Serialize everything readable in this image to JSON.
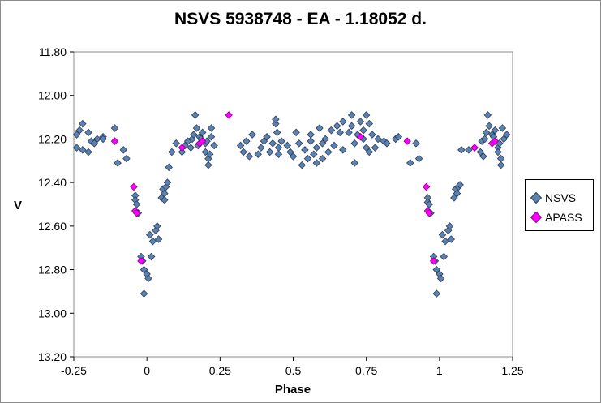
{
  "chart_data": {
    "type": "scatter",
    "title": "NSVS 5938748 - EA - 1.18052 d.",
    "xlabel": "Phase",
    "ylabel": "V",
    "xlim": [
      -0.25,
      1.25
    ],
    "ylim": [
      11.8,
      13.2
    ],
    "y_inverted": true,
    "x_ticks": [
      "-0.25",
      "0",
      "0.25",
      "0.5",
      "0.75",
      "1",
      "1.25"
    ],
    "y_ticks": [
      "11.80",
      "12.00",
      "12.20",
      "12.40",
      "12.60",
      "12.80",
      "13.00",
      "13.20"
    ],
    "grid": false,
    "legend_position": "right",
    "series": [
      {
        "name": "NSVS",
        "color": "#5b82b4",
        "points": [
          [
            -0.24,
            12.18
          ],
          [
            -0.24,
            12.24
          ],
          [
            -0.23,
            12.16
          ],
          [
            -0.22,
            12.13
          ],
          [
            -0.22,
            12.25
          ],
          [
            -0.2,
            12.26
          ],
          [
            -0.2,
            12.17
          ],
          [
            -0.19,
            12.21
          ],
          [
            -0.18,
            12.22
          ],
          [
            -0.17,
            12.2
          ],
          [
            -0.15,
            12.19
          ],
          [
            -0.15,
            12.2
          ],
          [
            -0.11,
            12.15
          ],
          [
            -0.1,
            12.31
          ],
          [
            -0.08,
            12.25
          ],
          [
            -0.07,
            12.29
          ],
          [
            -0.04,
            12.46
          ],
          [
            -0.04,
            12.48
          ],
          [
            -0.035,
            12.5
          ],
          [
            -0.03,
            12.54
          ],
          [
            -0.02,
            12.74
          ],
          [
            -0.015,
            12.76
          ],
          [
            -0.01,
            12.91
          ],
          [
            -0.01,
            12.8
          ],
          [
            0.0,
            12.82
          ],
          [
            0.005,
            12.84
          ],
          [
            0.01,
            12.64
          ],
          [
            0.015,
            12.74
          ],
          [
            0.02,
            12.67
          ],
          [
            0.03,
            12.62
          ],
          [
            0.035,
            12.6
          ],
          [
            0.04,
            12.66
          ],
          [
            0.05,
            12.47
          ],
          [
            0.055,
            12.43
          ],
          [
            0.06,
            12.45
          ],
          [
            0.065,
            12.42
          ],
          [
            0.06,
            12.48
          ],
          [
            0.07,
            12.4
          ],
          [
            0.075,
            12.33
          ],
          [
            0.085,
            12.26
          ],
          [
            0.1,
            12.22
          ],
          [
            0.12,
            12.26
          ],
          [
            0.13,
            12.23
          ],
          [
            0.14,
            12.21
          ],
          [
            0.15,
            12.24
          ],
          [
            0.155,
            12.2
          ],
          [
            0.16,
            12.18
          ],
          [
            0.165,
            12.09
          ],
          [
            0.17,
            12.15
          ],
          [
            0.175,
            12.23
          ],
          [
            0.18,
            12.19
          ],
          [
            0.185,
            12.2
          ],
          [
            0.19,
            12.17
          ],
          [
            0.2,
            12.22
          ],
          [
            0.2,
            12.26
          ],
          [
            0.205,
            12.21
          ],
          [
            0.21,
            12.29
          ],
          [
            0.21,
            12.32
          ],
          [
            0.215,
            12.27
          ],
          [
            0.22,
            12.15
          ],
          [
            0.22,
            12.19
          ],
          [
            0.23,
            12.23
          ],
          [
            0.32,
            12.23
          ],
          [
            0.33,
            12.26
          ],
          [
            0.34,
            12.21
          ],
          [
            0.35,
            12.28
          ],
          [
            0.36,
            12.18
          ],
          [
            0.38,
            12.27
          ],
          [
            0.39,
            12.24
          ],
          [
            0.4,
            12.21
          ],
          [
            0.41,
            12.19
          ],
          [
            0.42,
            12.26
          ],
          [
            0.43,
            12.22
          ],
          [
            0.44,
            12.13
          ],
          [
            0.44,
            12.11
          ],
          [
            0.445,
            12.17
          ],
          [
            0.45,
            12.24
          ],
          [
            0.45,
            12.27
          ],
          [
            0.46,
            12.21
          ],
          [
            0.48,
            12.23
          ],
          [
            0.49,
            12.26
          ],
          [
            0.5,
            12.28
          ],
          [
            0.51,
            12.17
          ],
          [
            0.52,
            12.22
          ],
          [
            0.53,
            12.32
          ],
          [
            0.54,
            12.25
          ],
          [
            0.55,
            12.29
          ],
          [
            0.56,
            12.21
          ],
          [
            0.56,
            12.18
          ],
          [
            0.57,
            12.27
          ],
          [
            0.58,
            12.24
          ],
          [
            0.58,
            12.31
          ],
          [
            0.59,
            12.15
          ],
          [
            0.6,
            12.22
          ],
          [
            0.6,
            12.29
          ],
          [
            0.61,
            12.2
          ],
          [
            0.62,
            12.26
          ],
          [
            0.63,
            12.16
          ],
          [
            0.64,
            12.23
          ],
          [
            0.65,
            12.14
          ],
          [
            0.66,
            12.17
          ],
          [
            0.67,
            12.25
          ],
          [
            0.67,
            12.12
          ],
          [
            0.69,
            12.17
          ],
          [
            0.7,
            12.09
          ],
          [
            0.7,
            12.14
          ],
          [
            0.71,
            12.22
          ],
          [
            0.71,
            12.31
          ],
          [
            0.72,
            12.18
          ],
          [
            0.73,
            12.12
          ],
          [
            0.74,
            12.16
          ],
          [
            0.74,
            12.2
          ],
          [
            0.75,
            12.24
          ],
          [
            0.75,
            12.09
          ],
          [
            0.76,
            12.13
          ],
          [
            0.76,
            12.26
          ],
          [
            0.77,
            12.18
          ],
          [
            0.78,
            12.24
          ],
          [
            0.79,
            12.2
          ],
          [
            0.81,
            12.21
          ],
          [
            0.82,
            12.22
          ],
          [
            0.85,
            12.2
          ],
          [
            0.86,
            12.19
          ],
          [
            0.9,
            12.31
          ],
          [
            0.92,
            12.22
          ],
          [
            0.93,
            12.29
          ],
          [
            0.96,
            12.47
          ],
          [
            0.96,
            12.49
          ],
          [
            0.965,
            12.5
          ],
          [
            0.97,
            12.54
          ],
          [
            0.98,
            12.74
          ],
          [
            0.985,
            12.76
          ],
          [
            0.99,
            12.91
          ],
          [
            0.99,
            12.8
          ],
          [
            1.0,
            12.82
          ],
          [
            1.005,
            12.84
          ],
          [
            1.01,
            12.64
          ],
          [
            1.015,
            12.74
          ],
          [
            1.02,
            12.67
          ],
          [
            1.03,
            12.62
          ],
          [
            1.035,
            12.6
          ],
          [
            1.04,
            12.66
          ],
          [
            1.05,
            12.47
          ],
          [
            1.055,
            12.43
          ],
          [
            1.06,
            12.45
          ],
          [
            1.065,
            12.42
          ],
          [
            1.07,
            12.41
          ],
          [
            1.075,
            12.25
          ],
          [
            1.1,
            12.25
          ],
          [
            1.12,
            12.24
          ],
          [
            1.14,
            12.26
          ],
          [
            1.145,
            12.21
          ],
          [
            1.15,
            12.28
          ],
          [
            1.155,
            12.2
          ],
          [
            1.16,
            12.17
          ],
          [
            1.165,
            12.09
          ],
          [
            1.17,
            12.14
          ],
          [
            1.18,
            12.18
          ],
          [
            1.185,
            12.19
          ],
          [
            1.19,
            12.16
          ],
          [
            1.2,
            12.24
          ],
          [
            1.2,
            12.26
          ],
          [
            1.205,
            12.22
          ],
          [
            1.21,
            12.29
          ],
          [
            1.21,
            12.32
          ],
          [
            1.215,
            12.15
          ],
          [
            1.22,
            12.2
          ],
          [
            1.23,
            12.18
          ]
        ]
      },
      {
        "name": "APASS",
        "color": "#ff00ff",
        "points": [
          [
            -0.11,
            12.21
          ],
          [
            -0.045,
            12.42
          ],
          [
            -0.04,
            12.53
          ],
          [
            -0.035,
            12.54
          ],
          [
            -0.02,
            12.76
          ],
          [
            0.12,
            12.24
          ],
          [
            0.18,
            12.22
          ],
          [
            0.19,
            12.21
          ],
          [
            0.28,
            12.09
          ],
          [
            0.73,
            12.19
          ],
          [
            0.89,
            12.21
          ],
          [
            0.955,
            12.42
          ],
          [
            0.96,
            12.53
          ],
          [
            0.965,
            12.54
          ],
          [
            0.98,
            12.76
          ],
          [
            1.12,
            12.24
          ],
          [
            1.18,
            12.22
          ],
          [
            1.19,
            12.21
          ]
        ]
      }
    ]
  }
}
